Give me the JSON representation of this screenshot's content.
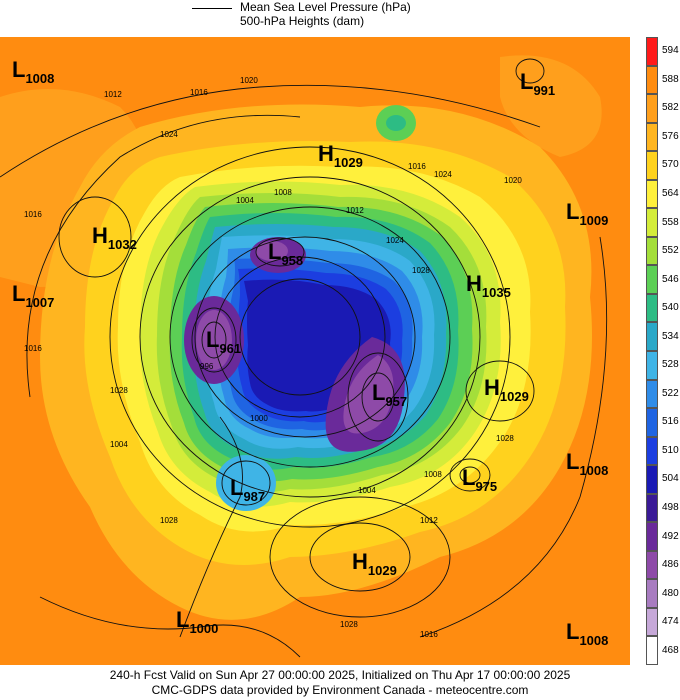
{
  "legend": {
    "line_label": "Mean Sea Level Pressure (hPa)",
    "fill_label": "500-hPa Heights (dam)"
  },
  "colorbar": {
    "ticks": [
      "594",
      "588",
      "582",
      "576",
      "570",
      "564",
      "558",
      "552",
      "546",
      "540",
      "534",
      "528",
      "522",
      "516",
      "510",
      "504",
      "498",
      "492",
      "486",
      "480",
      "474",
      "468"
    ],
    "colors": [
      "#ff1a1a",
      "#ff8c10",
      "#ff9f1c",
      "#ffb520",
      "#ffd21e",
      "#fff03c",
      "#d4ec3a",
      "#a4de3a",
      "#5ccf55",
      "#2dbc84",
      "#2aa8c8",
      "#3fb4e6",
      "#2f8ce8",
      "#1f64e2",
      "#1c3ee0",
      "#1a1ab4",
      "#3a1a96",
      "#6a2a9a",
      "#8e4aa8",
      "#a87cc0",
      "#c6a8d8",
      "#ffffff"
    ]
  },
  "systems": [
    {
      "type": "L",
      "value": "1008"
    },
    {
      "type": "L",
      "value": "991"
    },
    {
      "type": "H",
      "value": "1029"
    },
    {
      "type": "H",
      "value": "1032"
    },
    {
      "type": "L",
      "value": "1007"
    },
    {
      "type": "L",
      "value": "958"
    },
    {
      "type": "L",
      "value": "961"
    },
    {
      "type": "H",
      "value": "1035"
    },
    {
      "type": "L",
      "value": "1009"
    },
    {
      "type": "L",
      "value": "957"
    },
    {
      "type": "H",
      "value": "1029"
    },
    {
      "type": "L",
      "value": "987"
    },
    {
      "type": "L",
      "value": "975"
    },
    {
      "type": "L",
      "value": "1008"
    },
    {
      "type": "H",
      "value": "1029"
    },
    {
      "type": "L",
      "value": "1000"
    },
    {
      "type": "L",
      "value": "1008"
    }
  ],
  "isobar_labels": [
    "1012",
    "1016",
    "1020",
    "1024",
    "1016",
    "1020",
    "1024",
    "1028",
    "1004",
    "1008",
    "1012",
    "1016",
    "1000",
    "996",
    "1004",
    "1008",
    "1028",
    "1028",
    "1012",
    "1024",
    "1016",
    "1004",
    "1028",
    "1028",
    "1016"
  ],
  "footer": {
    "line1": "240-h Fcst Valid on Sun Apr 27 00:00:00 2025, Initialized on Thu Apr 17 00:00:00 2025",
    "line2": "CMC-GDPS data provided by Environment Canada - meteocentre.com"
  }
}
